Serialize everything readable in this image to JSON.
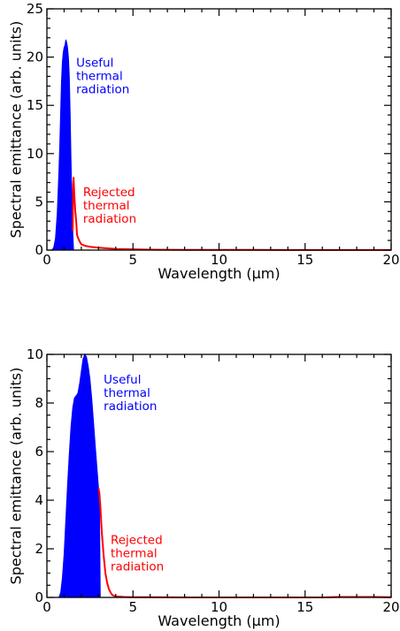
{
  "colors": {
    "useful": "#0000ff",
    "rejected": "#ff0000",
    "axis": "#000000"
  },
  "chart_data": [
    {
      "type": "area",
      "xlabel": "Wavelength (μm)",
      "ylabel": "Spectral emittance (arb. units)",
      "xlim": [
        0,
        20
      ],
      "ylim": [
        0,
        25
      ],
      "xticks": [
        0,
        5,
        10,
        15,
        20
      ],
      "yticks": [
        0,
        5,
        10,
        15,
        20,
        25
      ],
      "x_minor_step": 1,
      "y_minor_step": 1,
      "annotations": [
        {
          "lines": [
            "Useful",
            "thermal",
            "radiation"
          ],
          "x": 1.7,
          "y": 19.0,
          "color": "#0000ff",
          "series": "useful"
        },
        {
          "lines": [
            "Rejected",
            "thermal",
            "radiation"
          ],
          "x": 2.1,
          "y": 5.6,
          "color": "#ff0000",
          "series": "rejected"
        }
      ],
      "series": [
        {
          "id": "useful",
          "color": "#0000ff",
          "fill": true,
          "x": [
            0.3,
            0.4,
            0.5,
            0.6,
            0.7,
            0.75,
            0.8,
            0.85,
            0.9,
            0.95,
            1.0,
            1.05,
            1.1,
            1.15,
            1.2,
            1.25,
            1.3,
            1.35,
            1.4,
            1.45,
            1.5,
            1.55
          ],
          "y": [
            0,
            0.3,
            1.2,
            3.8,
            8.2,
            11.0,
            14.5,
            17.5,
            19.5,
            20.5,
            21.0,
            21.2,
            21.8,
            21.5,
            21.0,
            20.0,
            18.0,
            14.0,
            9.5,
            5.0,
            2.0,
            0
          ]
        },
        {
          "id": "rejected",
          "color": "#ff0000",
          "fill": false,
          "x": [
            1.5,
            1.52,
            1.55,
            1.6,
            1.65,
            1.7,
            1.75,
            1.8,
            1.85,
            1.9,
            2.0,
            2.2,
            2.5,
            3.0,
            3.5,
            4.0,
            5.0,
            6.0,
            8.0,
            10.0,
            12.0,
            14.0,
            16.0,
            18.0,
            20.0
          ],
          "y": [
            2.0,
            6.8,
            7.5,
            5.5,
            4.0,
            3.0,
            1.6,
            1.3,
            1.1,
            0.9,
            0.6,
            0.45,
            0.35,
            0.25,
            0.18,
            0.12,
            0.08,
            0.05,
            0.03,
            0.02,
            0.02,
            0.01,
            0.01,
            0.01,
            0.01
          ]
        }
      ]
    },
    {
      "type": "area",
      "xlabel": "Wavelength (μm)",
      "ylabel": "Spectral emittance (arb. units)",
      "xlim": [
        0,
        20
      ],
      "ylim": [
        0,
        10
      ],
      "xticks": [
        0,
        5,
        10,
        15,
        20
      ],
      "yticks": [
        0,
        2,
        4,
        6,
        8,
        10
      ],
      "x_minor_step": 1,
      "y_minor_step": 0.5,
      "annotations": [
        {
          "lines": [
            "Useful",
            "thermal",
            "radiation"
          ],
          "x": 3.3,
          "y": 8.8,
          "color": "#0000ff",
          "series": "useful"
        },
        {
          "lines": [
            "Rejected",
            "thermal",
            "radiation"
          ],
          "x": 3.7,
          "y": 2.2,
          "color": "#ff0000",
          "series": "rejected"
        }
      ],
      "series": [
        {
          "id": "useful",
          "color": "#0000ff",
          "fill": true,
          "x": [
            0.7,
            0.8,
            0.9,
            1.0,
            1.1,
            1.2,
            1.3,
            1.4,
            1.5,
            1.6,
            1.7,
            1.8,
            1.9,
            2.0,
            2.1,
            2.2,
            2.3,
            2.4,
            2.5,
            2.6,
            2.7,
            2.8,
            2.9,
            3.0,
            3.05,
            3.1
          ],
          "y": [
            0,
            0.2,
            0.8,
            1.8,
            3.2,
            4.6,
            5.9,
            7.0,
            7.8,
            8.2,
            8.3,
            8.4,
            8.8,
            9.3,
            9.8,
            10.0,
            9.9,
            9.5,
            9.0,
            8.2,
            7.3,
            6.3,
            5.4,
            4.5,
            4.1,
            0
          ]
        },
        {
          "id": "rejected",
          "color": "#ff0000",
          "fill": false,
          "x": [
            3.0,
            3.05,
            3.1,
            3.2,
            3.3,
            3.4,
            3.5,
            3.6,
            3.7,
            3.8,
            4.0,
            4.5,
            5.0,
            6.0,
            8.0,
            10.0,
            12.0,
            14.0,
            16.0,
            17.0,
            18.0,
            19.0,
            20.0
          ],
          "y": [
            4.5,
            4.3,
            3.8,
            2.6,
            1.7,
            1.0,
            0.6,
            0.35,
            0.2,
            0.1,
            0.04,
            0.02,
            0.01,
            0.01,
            0.0,
            0.0,
            0.0,
            0.0,
            0.0,
            0.02,
            0.02,
            0.02,
            0.01
          ]
        }
      ]
    }
  ]
}
